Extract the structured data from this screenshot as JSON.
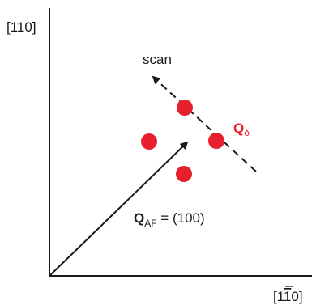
{
  "axes": {
    "y_label": "[110]",
    "x_label_pre": "[1",
    "x_label_bar": "1",
    "x_label_post": "0]"
  },
  "scan": {
    "label": "scan"
  },
  "q_delta": {
    "symbol": "Q",
    "subscript": "δ",
    "color": "#e8202e"
  },
  "q_af": {
    "symbol": "Q",
    "subscript": "AF",
    "value": " = (100)"
  },
  "colors": {
    "dots": "#e8202e",
    "lines": "#1a1a1a"
  }
}
